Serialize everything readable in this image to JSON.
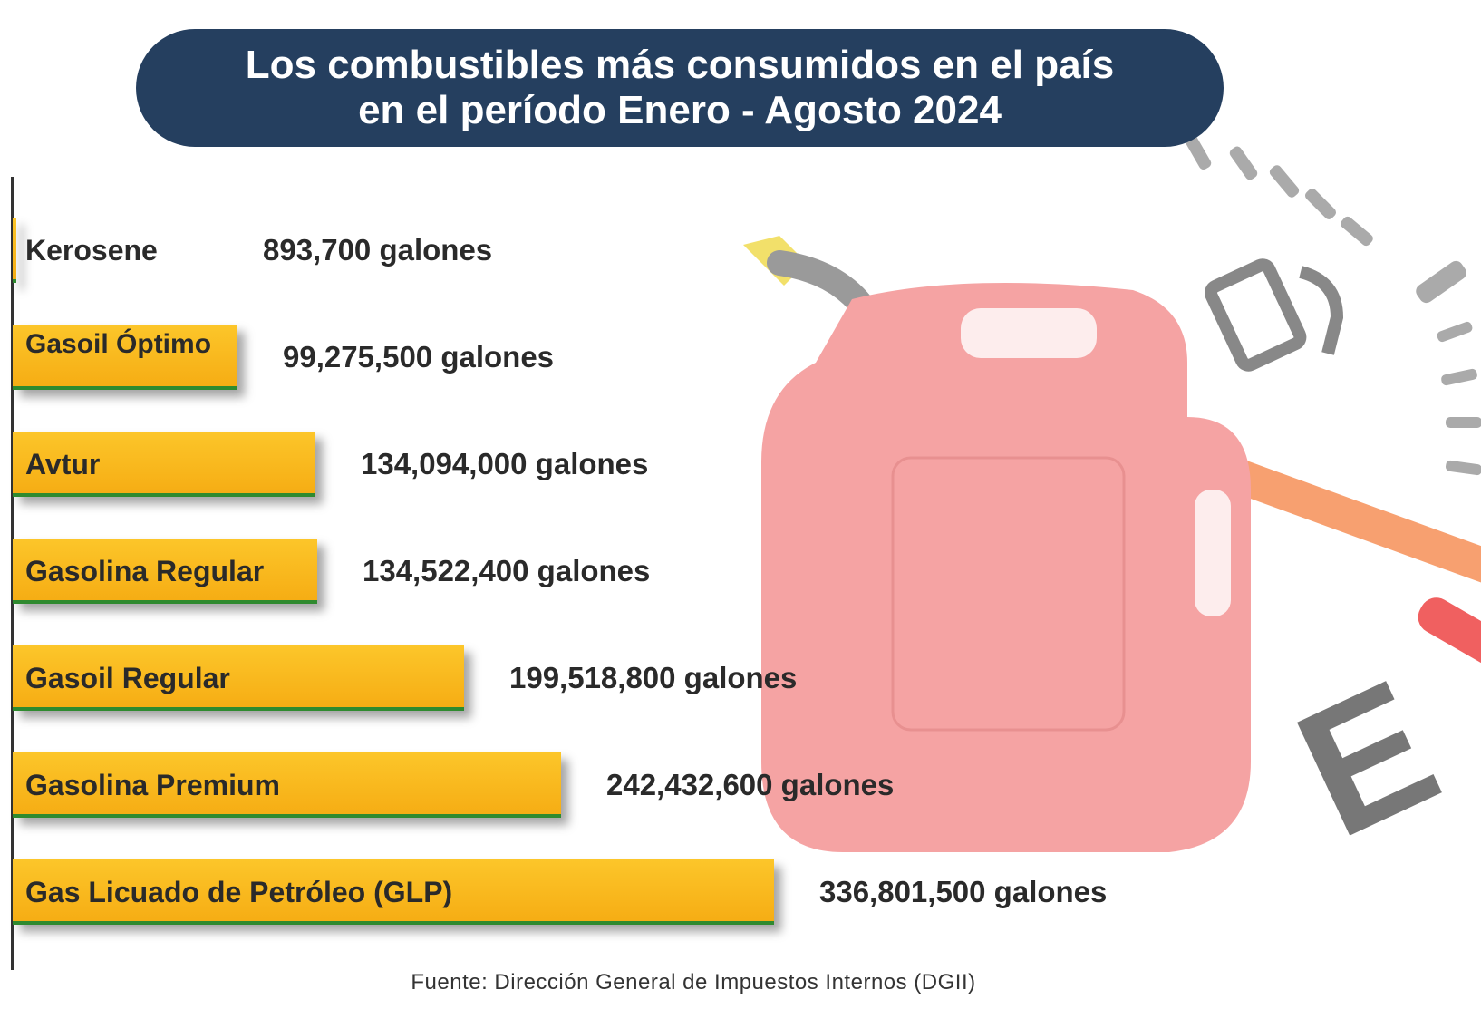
{
  "title": {
    "line1": "Los combustibles más consumidos en el país",
    "line2": "en el período Enero - Agosto 2024"
  },
  "source": "Fuente: Dirección General de Impuestos Internos (DGII)",
  "colors": {
    "bar": "#f9b81c",
    "bar_underline": "#2f8a2f",
    "title_bg": "#253f5f",
    "text": "#2a2a2a"
  },
  "chart_data": {
    "type": "bar",
    "orientation": "horizontal",
    "unit": "galones",
    "categories": [
      "Kerosene",
      "Gasoil Óptimo",
      "Avtur",
      "Gasolina Regular",
      "Gasoil Regular",
      "Gasolina Premium",
      "Gas Licuado de Petróleo (GLP)"
    ],
    "values": [
      893700,
      99275500,
      134094000,
      134522400,
      199518800,
      242432600,
      336801500
    ],
    "value_labels": [
      "893,700 galones",
      "99,275,500 galones",
      "134,094,000 galones",
      "134,522,400 galones",
      "199,518,800 galones",
      "242,432,600 galones",
      "336,801,500 galones"
    ],
    "grid": false,
    "legend": "none"
  }
}
